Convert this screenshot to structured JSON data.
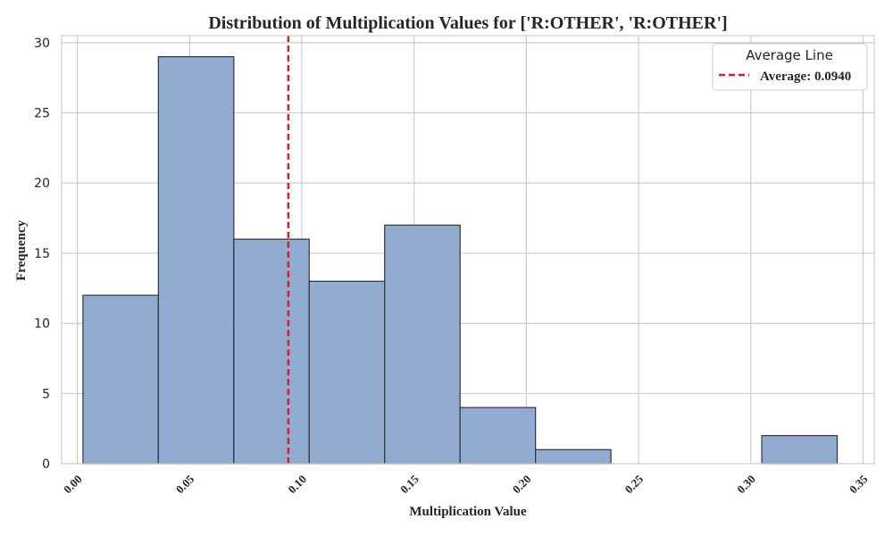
{
  "chart_data": {
    "type": "bar",
    "title": "Distribution of Multiplication Values for ['R:OTHER', 'R:OTHER']",
    "xlabel": "Multiplication Value",
    "ylabel": "Frequency",
    "xlim": [
      -0.007,
      0.355
    ],
    "ylim": [
      0,
      30.5
    ],
    "x_ticks": [
      0.0,
      0.05,
      0.1,
      0.15,
      0.2,
      0.25,
      0.3,
      0.35
    ],
    "x_tick_labels": [
      "0.00",
      "0.05",
      "0.10",
      "0.15",
      "0.20",
      "0.25",
      "0.30",
      "0.35"
    ],
    "y_ticks": [
      0,
      5,
      10,
      15,
      20,
      25,
      30
    ],
    "y_tick_labels": [
      "0",
      "5",
      "10",
      "15",
      "20",
      "25",
      "30"
    ],
    "bins": [
      {
        "start": 0.0025,
        "end": 0.0361,
        "count": 12
      },
      {
        "start": 0.0361,
        "end": 0.0697,
        "count": 29
      },
      {
        "start": 0.0697,
        "end": 0.1033,
        "count": 16
      },
      {
        "start": 0.1033,
        "end": 0.1369,
        "count": 13
      },
      {
        "start": 0.1369,
        "end": 0.1705,
        "count": 17
      },
      {
        "start": 0.1705,
        "end": 0.2041,
        "count": 4
      },
      {
        "start": 0.2041,
        "end": 0.2377,
        "count": 1
      },
      {
        "start": 0.2377,
        "end": 0.2713,
        "count": 0
      },
      {
        "start": 0.2713,
        "end": 0.3049,
        "count": 0
      },
      {
        "start": 0.3049,
        "end": 0.3385,
        "count": 2
      }
    ],
    "average_line": {
      "value": 0.094,
      "label": "Average: 0.0940",
      "color": "#e41a1c",
      "style": "dashed"
    },
    "legend": {
      "title": "Average Line",
      "placement": "top-right"
    },
    "grid": true,
    "bar_color": "#8faacf",
    "bar_edge_color": "#333333"
  }
}
